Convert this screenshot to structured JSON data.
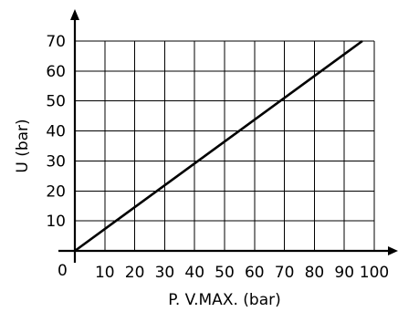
{
  "chart_data": {
    "type": "line",
    "xlabel": "P. V.MAX. (bar)",
    "ylabel": "U (bar)",
    "xlim": [
      0,
      100
    ],
    "ylim": [
      0,
      70
    ],
    "x_ticks": [
      10,
      20,
      30,
      40,
      50,
      60,
      70,
      80,
      90,
      100
    ],
    "y_ticks": [
      10,
      20,
      30,
      40,
      50,
      60,
      70
    ],
    "origin_label": "0",
    "grid": true,
    "legend": "none",
    "series": [
      {
        "x": [
          0,
          96
        ],
        "y": [
          0,
          70
        ]
      }
    ]
  }
}
